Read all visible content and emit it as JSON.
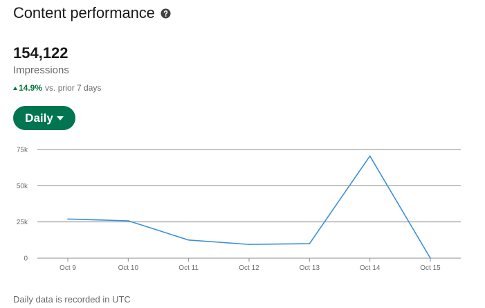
{
  "header": {
    "title": "Content performance",
    "help_icon": "question-circle-icon"
  },
  "metric": {
    "value": "154,122",
    "label": "Impressions",
    "delta_pct": "14.9%",
    "delta_text": "vs. prior 7 days",
    "delta_direction": "up",
    "delta_color": "#057642"
  },
  "range_button": {
    "label": "Daily",
    "color": "#01754f"
  },
  "chart_data": {
    "type": "line",
    "categories": [
      "Oct 9",
      "Oct 10",
      "Oct 11",
      "Oct 12",
      "Oct 13",
      "Oct 14",
      "Oct 15"
    ],
    "values": [
      27000,
      25800,
      12500,
      9500,
      10000,
      70500,
      0
    ],
    "ylim": [
      0,
      75000
    ],
    "yticks": [
      0,
      25000,
      50000,
      75000
    ],
    "ytick_labels": [
      "0",
      "25k",
      "50k",
      "75k"
    ],
    "grid": true,
    "line_color": "#3a8fd9"
  },
  "footer": {
    "note": "Daily data is recorded in UTC"
  }
}
